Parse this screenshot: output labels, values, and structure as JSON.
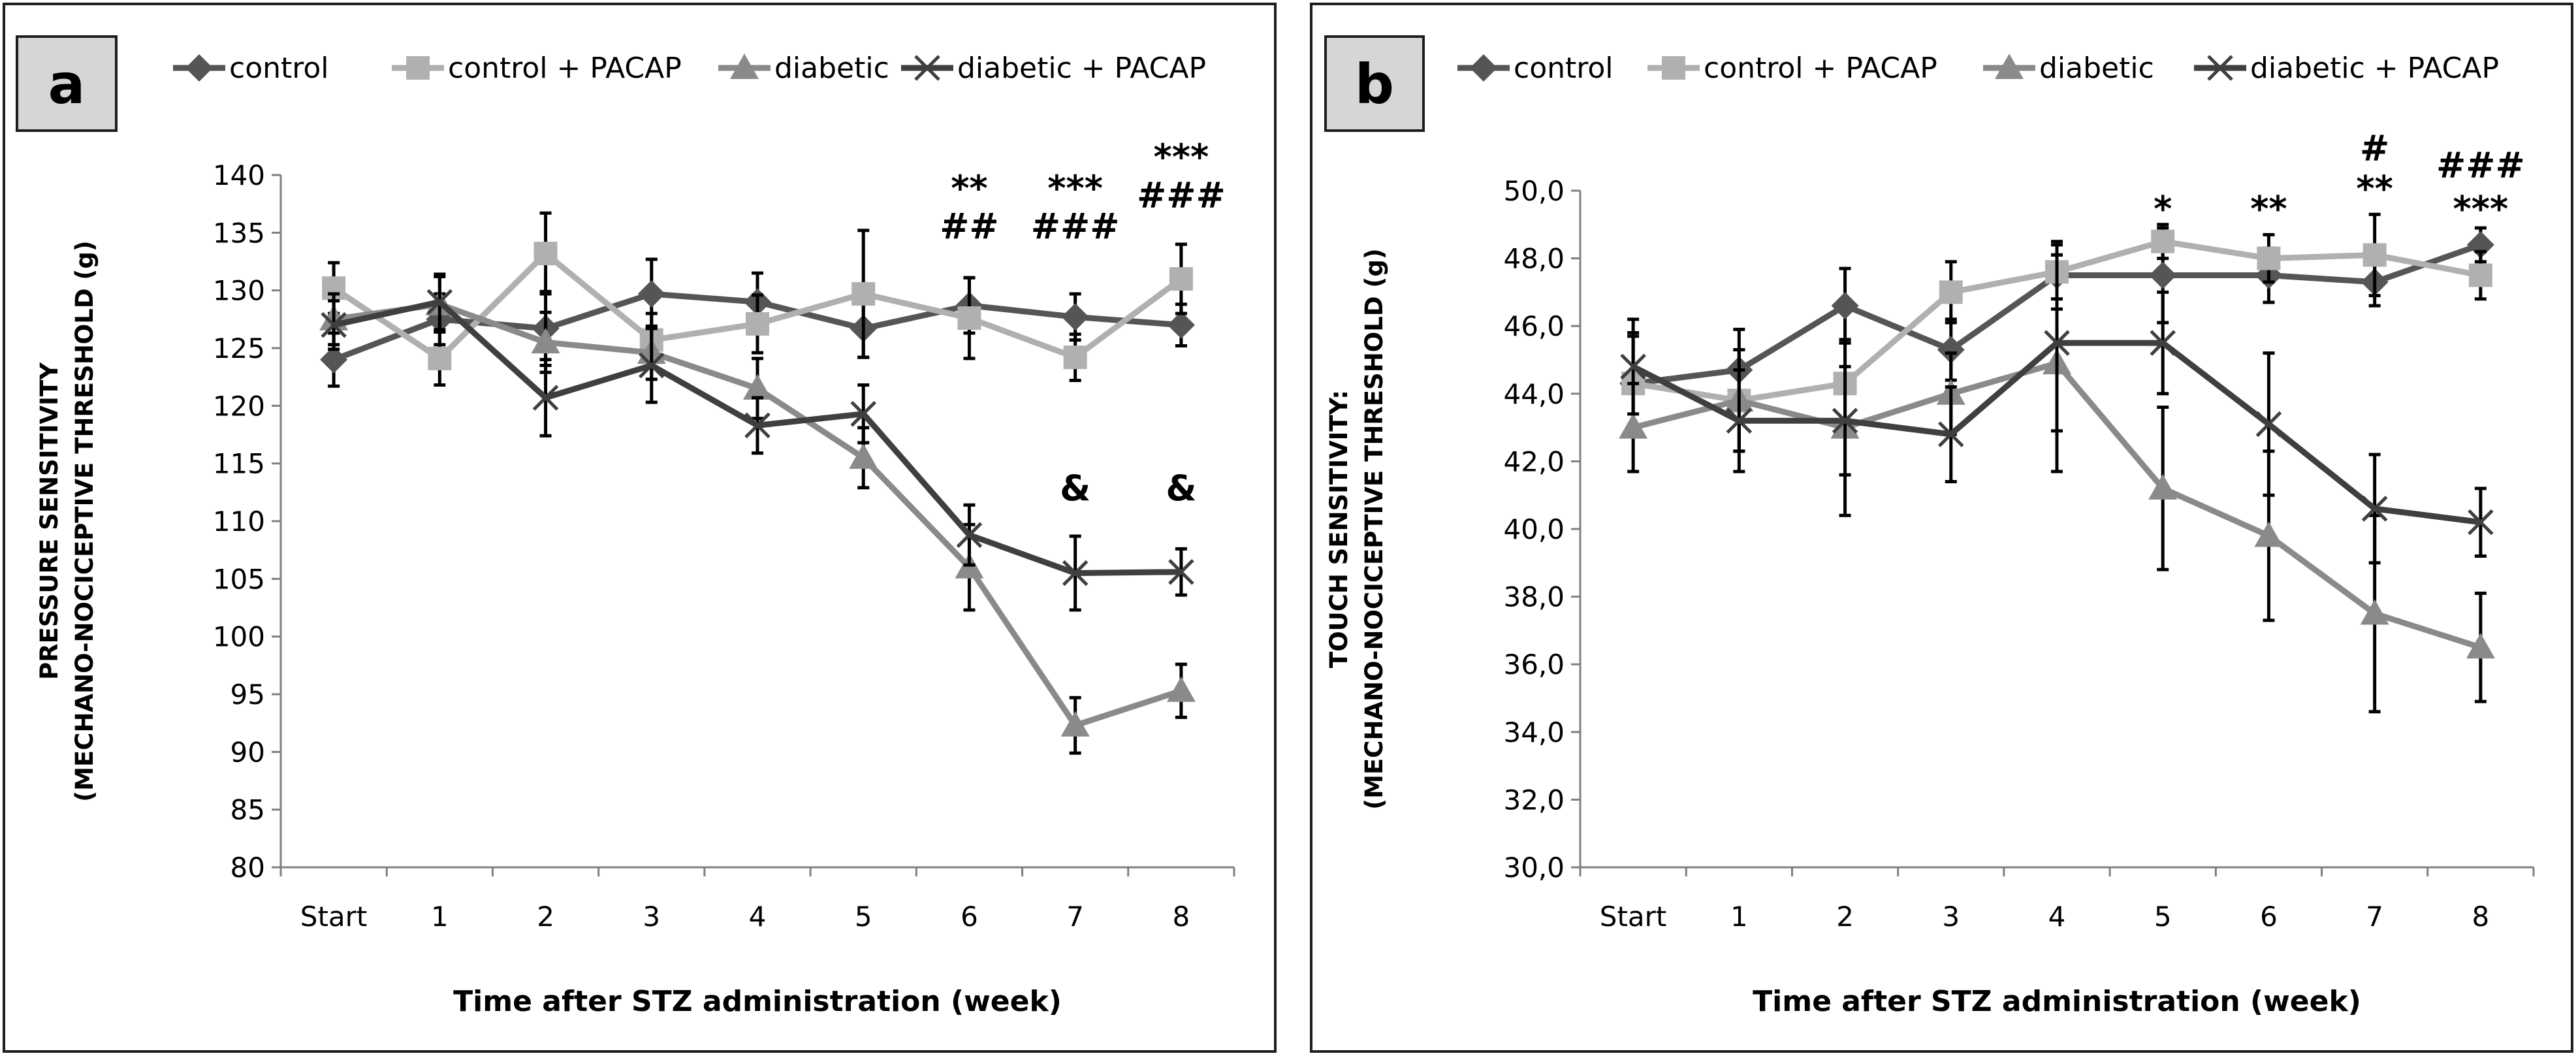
{
  "chart_data": [
    {
      "type": "line",
      "panel_label": "a",
      "categories": [
        "Start",
        "1",
        "2",
        "3",
        "4",
        "5",
        "6",
        "7",
        "8"
      ],
      "xlabel": "Time after STZ administration (week)",
      "ylabel_lines": [
        "PRESSURE SENSITIVITY",
        "(MECHANO-NOCICEPTIVE THRESHOLD (g)"
      ],
      "ylim": [
        80,
        140
      ],
      "yticks": [
        80,
        85,
        90,
        95,
        100,
        105,
        110,
        115,
        120,
        125,
        130,
        135,
        140
      ],
      "ytick_labels": [
        "80",
        "85",
        "90",
        "95",
        "100",
        "105",
        "110",
        "115",
        "120",
        "125",
        "130",
        "135",
        "140"
      ],
      "series": [
        {
          "name": "control",
          "color": "#555555",
          "marker": "diamond",
          "values": [
            124,
            127.5,
            126.7,
            129.7,
            129.0,
            126.7,
            128.7,
            127.7,
            127.0
          ],
          "errors": [
            2.3,
            2.2,
            3.2,
            3.0,
            2.5,
            2.5,
            2.4,
            2.0,
            1.8
          ]
        },
        {
          "name": "control + PACAP",
          "color": "#b0b0b0",
          "marker": "square",
          "values": [
            130.2,
            124.1,
            133.2,
            125.7,
            127.1,
            129.7,
            127.6,
            124.2,
            131.0
          ],
          "errors": [
            2.2,
            2.3,
            3.5,
            2.3,
            2.5,
            5.5,
            3.5,
            2.0,
            3.0
          ]
        },
        {
          "name": "diabetic",
          "color": "#8a8a8a",
          "marker": "triangle",
          "values": [
            127.5,
            128.8,
            125.5,
            124.6,
            121.5,
            115.5,
            106.0,
            92.3,
            95.3
          ],
          "errors": [
            2.2,
            2.4,
            2.6,
            2.3,
            2.6,
            2.6,
            3.7,
            2.4,
            2.3
          ]
        },
        {
          "name": "diabetic + PACAP",
          "color": "#3f3f3f",
          "marker": "x",
          "values": [
            127.0,
            129.0,
            120.7,
            123.5,
            118.3,
            119.3,
            108.8,
            105.5,
            105.6
          ],
          "errors": [
            2.1,
            2.4,
            3.3,
            3.2,
            2.4,
            2.5,
            2.6,
            3.2,
            2.0
          ]
        }
      ],
      "annotations": [
        {
          "category": "6",
          "value": 137.8,
          "text": "**"
        },
        {
          "category": "6",
          "value": 134.5,
          "text": "##"
        },
        {
          "category": "7",
          "value": 137.8,
          "text": "***"
        },
        {
          "category": "7",
          "value": 134.5,
          "text": "###"
        },
        {
          "category": "8",
          "value": 140.5,
          "text": "***"
        },
        {
          "category": "8",
          "value": 137.2,
          "text": "###"
        },
        {
          "category": "7",
          "value": 111.8,
          "text": "&"
        },
        {
          "category": "8",
          "value": 111.8,
          "text": "&"
        }
      ]
    },
    {
      "type": "line",
      "panel_label": "b",
      "categories": [
        "Start",
        "1",
        "2",
        "3",
        "4",
        "5",
        "6",
        "7",
        "8"
      ],
      "xlabel": "Time after STZ administration (week)",
      "ylabel_lines": [
        "TOUCH SENSITIVITY:",
        "(MECHANO-NOCICEPTIVE THRESHOLD (g)"
      ],
      "ylim": [
        30,
        50
      ],
      "yticks": [
        30,
        32,
        34,
        36,
        38,
        40,
        42,
        44,
        46,
        48,
        50
      ],
      "ytick_labels": [
        "30,0",
        "32,0",
        "34,0",
        "36,0",
        "38,0",
        "40,0",
        "42,0",
        "44,0",
        "46,0",
        "48,0",
        "50,0"
      ],
      "series": [
        {
          "name": "control",
          "color": "#555555",
          "marker": "diamond",
          "values": [
            44.3,
            44.7,
            46.6,
            45.3,
            47.5,
            47.5,
            47.5,
            47.3,
            48.4
          ],
          "errors": [
            1.4,
            1.2,
            1.1,
            0.9,
            1.0,
            1.4,
            0.8,
            0.7,
            0.5
          ]
        },
        {
          "name": "control + PACAP",
          "color": "#b0b0b0",
          "marker": "square",
          "values": [
            44.3,
            43.8,
            44.3,
            47.0,
            47.6,
            48.5,
            48.0,
            48.1,
            47.5
          ],
          "errors": [
            1.5,
            1.5,
            1.2,
            0.9,
            0.8,
            0.5,
            0.7,
            1.2,
            0.7
          ]
        },
        {
          "name": "diabetic",
          "color": "#8a8a8a",
          "marker": "triangle",
          "values": [
            43.0,
            43.8,
            43.0,
            44.0,
            44.9,
            41.2,
            39.8,
            37.5,
            36.5
          ],
          "errors": [
            1.3,
            1.5,
            2.6,
            1.2,
            3.2,
            2.4,
            2.5,
            2.9,
            1.6
          ]
        },
        {
          "name": "diabetic + PACAP",
          "color": "#3f3f3f",
          "marker": "x",
          "values": [
            44.8,
            43.2,
            43.2,
            42.8,
            45.5,
            45.5,
            43.1,
            40.6,
            40.2
          ],
          "errors": [
            1.4,
            1.5,
            1.6,
            1.4,
            2.6,
            1.5,
            2.1,
            1.6,
            1.0
          ]
        }
      ],
      "annotations": [
        {
          "category": "5",
          "value": 49.1,
          "text": "*"
        },
        {
          "category": "6",
          "value": 49.1,
          "text": "**"
        },
        {
          "category": "7",
          "value": 50.9,
          "text": "#"
        },
        {
          "category": "7",
          "value": 49.7,
          "text": "**"
        },
        {
          "category": "8",
          "value": 50.4,
          "text": "###"
        },
        {
          "category": "8",
          "value": 49.1,
          "text": "***"
        }
      ]
    }
  ]
}
